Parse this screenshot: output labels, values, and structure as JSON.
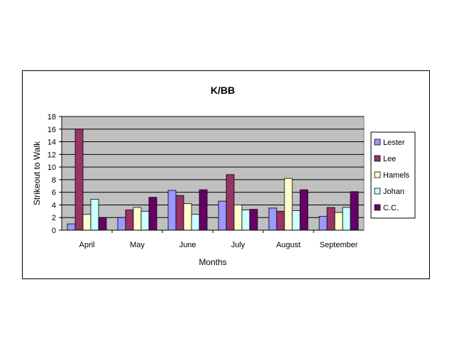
{
  "chart_data": {
    "type": "bar",
    "title": "K/BB",
    "xlabel": "Months",
    "ylabel": "Strikeout to Walk",
    "ylim": [
      0,
      18
    ],
    "yticks": [
      0,
      2,
      4,
      6,
      8,
      10,
      12,
      14,
      16,
      18
    ],
    "grid": true,
    "legend_position": "right",
    "plot_background": "#c0c0c0",
    "categories": [
      "April",
      "May",
      "June",
      "July",
      "August",
      "September"
    ],
    "series": [
      {
        "name": "Lester",
        "color": "#9999ff",
        "values": [
          1.0,
          2.0,
          6.3,
          4.6,
          3.5,
          2.2
        ]
      },
      {
        "name": "Lee",
        "color": "#993366",
        "values": [
          16.0,
          3.2,
          5.5,
          8.8,
          3.0,
          3.6
        ]
      },
      {
        "name": "Hamels",
        "color": "#ffffcc",
        "values": [
          2.5,
          3.6,
          4.2,
          4.0,
          8.2,
          2.8
        ]
      },
      {
        "name": "Johan",
        "color": "#ccffff",
        "values": [
          4.9,
          3.0,
          2.5,
          3.2,
          3.1,
          3.6
        ]
      },
      {
        "name": "C.C.",
        "color": "#660066",
        "values": [
          2.0,
          5.2,
          6.4,
          3.3,
          6.4,
          6.1
        ]
      }
    ]
  }
}
